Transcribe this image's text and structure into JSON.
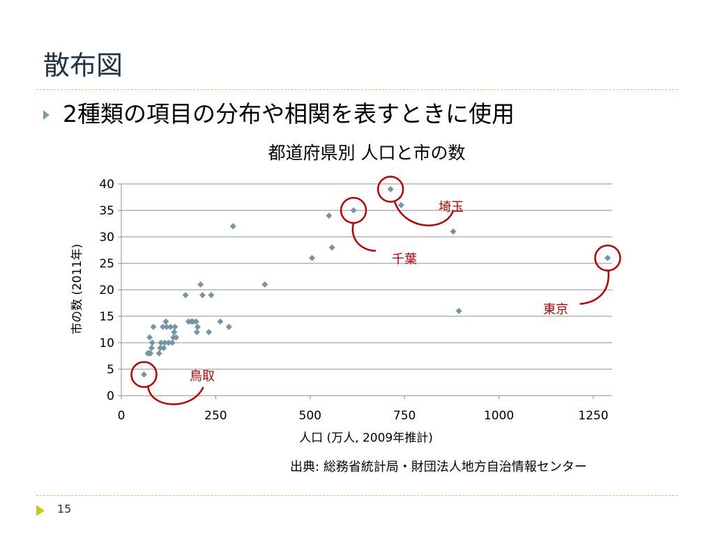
{
  "slide": {
    "title": "散布図",
    "bullet": "2種類の項目の分布や相関を表すときに使用",
    "source": "出典: 総務省統計局・財団法人地方自治情報センター",
    "page_number": "15"
  },
  "colors": {
    "title_text": "#1f3347",
    "rule": "#c9c95e",
    "bullet_marker": "#7f9aa6",
    "footer_marker": "#c9c91a",
    "marker": "#7396a4",
    "annotation": "#c00000",
    "gridline": "#8c8c8c"
  },
  "chart_data": {
    "type": "scatter",
    "title": "都道府県別 人口と市の数",
    "xlabel": "人口 (万人, 2009年推計)",
    "ylabel": "市の数 (2011年)",
    "xlim": [
      0,
      1300
    ],
    "ylim": [
      0,
      40
    ],
    "xticks": [
      0,
      250,
      500,
      750,
      1000,
      1250
    ],
    "yticks": [
      0,
      5,
      10,
      15,
      20,
      25,
      30,
      35,
      40
    ],
    "grid": "horizontal",
    "marker": "diamond",
    "points": [
      [
        60,
        4
      ],
      [
        70,
        8
      ],
      [
        73,
        8
      ],
      [
        75,
        11
      ],
      [
        77,
        8
      ],
      [
        80,
        9
      ],
      [
        82,
        10
      ],
      [
        85,
        13
      ],
      [
        100,
        8
      ],
      [
        103,
        9
      ],
      [
        105,
        10
      ],
      [
        110,
        13
      ],
      [
        112,
        9
      ],
      [
        115,
        10
      ],
      [
        118,
        14
      ],
      [
        120,
        13
      ],
      [
        125,
        10
      ],
      [
        130,
        13
      ],
      [
        135,
        10
      ],
      [
        138,
        11
      ],
      [
        140,
        12
      ],
      [
        142,
        13
      ],
      [
        145,
        11
      ],
      [
        170,
        19
      ],
      [
        178,
        14
      ],
      [
        185,
        14
      ],
      [
        190,
        14
      ],
      [
        198,
        14
      ],
      [
        200,
        12
      ],
      [
        202,
        13
      ],
      [
        210,
        21
      ],
      [
        215,
        19
      ],
      [
        232,
        12
      ],
      [
        238,
        19
      ],
      [
        262,
        14
      ],
      [
        285,
        13
      ],
      [
        296,
        32
      ],
      [
        380,
        21
      ],
      [
        505,
        26
      ],
      [
        550,
        34
      ],
      [
        558,
        28
      ],
      [
        615,
        35
      ],
      [
        713,
        39
      ],
      [
        741,
        36
      ],
      [
        879,
        31
      ],
      [
        894,
        16
      ],
      [
        1288,
        26
      ]
    ],
    "annotations": [
      {
        "label": "鳥取",
        "x": 60,
        "y": 4
      },
      {
        "label": "千葉",
        "x": 615,
        "y": 35
      },
      {
        "label": "埼玉",
        "x": 713,
        "y": 39
      },
      {
        "label": "東京",
        "x": 1288,
        "y": 26
      }
    ]
  }
}
